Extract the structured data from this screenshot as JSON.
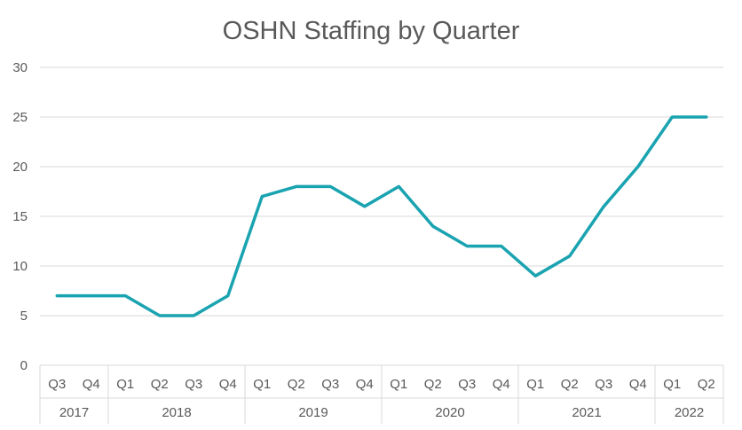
{
  "chart_data": {
    "type": "line",
    "title": "OSHN Staffing by Quarter",
    "xlabel": "",
    "ylabel": "",
    "ylim": [
      0,
      30
    ],
    "yticks": [
      0,
      5,
      10,
      15,
      20,
      25,
      30
    ],
    "grid": true,
    "legend": "none",
    "color": "#1aa3b0",
    "categories": [
      "Q3",
      "Q4",
      "Q1",
      "Q2",
      "Q3",
      "Q4",
      "Q1",
      "Q2",
      "Q3",
      "Q4",
      "Q1",
      "Q2",
      "Q3",
      "Q4",
      "Q1",
      "Q2",
      "Q3",
      "Q4",
      "Q1",
      "Q2"
    ],
    "year_groups": [
      {
        "label": "2017",
        "count": 2
      },
      {
        "label": "2018",
        "count": 4
      },
      {
        "label": "2019",
        "count": 4
      },
      {
        "label": "2020",
        "count": 4
      },
      {
        "label": "2021",
        "count": 4
      },
      {
        "label": "2022",
        "count": 2
      }
    ],
    "series": [
      {
        "values": [
          7,
          7,
          7,
          5,
          5,
          7,
          17,
          18,
          18,
          16,
          18,
          14,
          12,
          12,
          9,
          11,
          16,
          20,
          25,
          25
        ]
      }
    ]
  }
}
